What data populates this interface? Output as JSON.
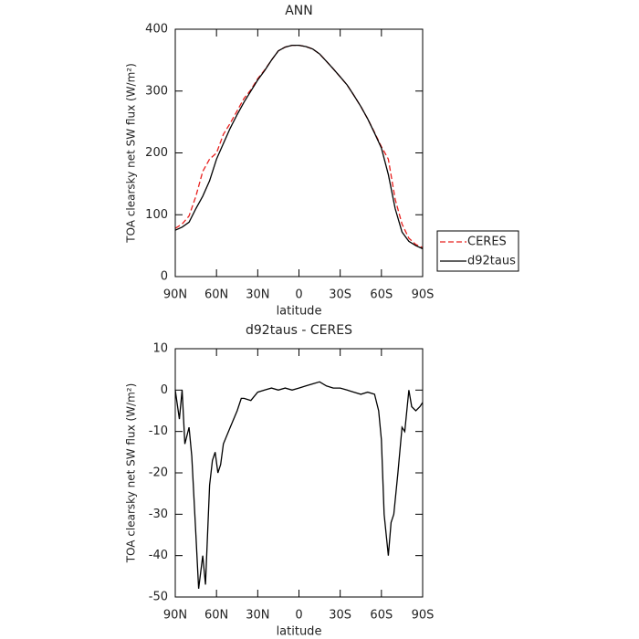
{
  "chart_data": [
    {
      "type": "line",
      "title": "ANN",
      "xlabel": "latitude",
      "ylabel": "TOA clearsky net SW flux (W/m²)",
      "x": [
        90,
        85,
        80,
        75,
        70,
        65,
        60,
        55,
        50,
        45,
        40,
        35,
        30,
        25,
        20,
        15,
        10,
        5,
        0,
        -5,
        -10,
        -15,
        -20,
        -25,
        -30,
        -35,
        -40,
        -45,
        -50,
        -55,
        -60,
        -65,
        -70,
        -75,
        -80,
        -85,
        -90
      ],
      "series": [
        {
          "name": "CERES",
          "color": "#e8201e",
          "style": "dashed",
          "values": [
            78,
            85,
            98,
            130,
            170,
            190,
            200,
            230,
            248,
            268,
            288,
            302,
            320,
            334,
            350,
            365,
            371,
            374,
            374,
            372,
            368,
            360,
            348,
            336,
            323,
            310,
            293,
            275,
            255,
            233,
            210,
            190,
            125,
            85,
            62,
            52,
            47
          ]
        },
        {
          "name": "d92taus",
          "color": "#000000",
          "style": "solid",
          "values": [
            75,
            80,
            88,
            110,
            130,
            155,
            190,
            215,
            240,
            262,
            282,
            300,
            318,
            333,
            350,
            365,
            371,
            374,
            374,
            372,
            368,
            360,
            348,
            336,
            323,
            310,
            293,
            275,
            255,
            232,
            208,
            165,
            110,
            72,
            57,
            50,
            45
          ]
        }
      ],
      "xlim": [
        90,
        -90
      ],
      "xticks": [
        {
          "value": 90,
          "label": "90N"
        },
        {
          "value": 60,
          "label": "60N"
        },
        {
          "value": 30,
          "label": "30N"
        },
        0,
        {
          "value": -30,
          "label": "30S"
        },
        {
          "value": -60,
          "label": "60S"
        },
        {
          "value": -90,
          "label": "90S"
        }
      ],
      "ylim": [
        0,
        400
      ],
      "yticks": [
        0,
        100,
        200,
        300,
        400
      ],
      "legend": "outside right"
    },
    {
      "type": "line",
      "title": "d92taus - CERES",
      "xlabel": "latitude",
      "ylabel": "TOA clearsky net SW flux (W/m²)",
      "x": [
        90,
        87,
        85,
        83,
        80,
        78,
        75,
        73,
        70,
        68,
        65,
        63,
        61,
        59,
        57,
        55,
        50,
        45,
        42,
        40,
        35,
        30,
        25,
        20,
        15,
        10,
        5,
        0,
        -5,
        -10,
        -15,
        -20,
        -25,
        -30,
        -35,
        -40,
        -45,
        -50,
        -55,
        -58,
        -60,
        -62,
        -65,
        -67,
        -69,
        -72,
        -75,
        -77,
        -80,
        -82,
        -85,
        -88,
        -90
      ],
      "values": [
        0,
        -7,
        0,
        -13,
        -9,
        -16,
        -35,
        -48,
        -40,
        -47,
        -23,
        -17,
        -15,
        -20,
        -18,
        -13,
        -9,
        -5,
        -2,
        -2,
        -2.5,
        -0.5,
        0,
        0.5,
        0,
        0.5,
        0,
        0.5,
        1,
        1.5,
        2,
        1,
        0.5,
        0.5,
        0,
        -0.5,
        -1,
        -0.5,
        -1,
        -5,
        -12,
        -30,
        -40,
        -32,
        -30,
        -20,
        -9,
        -10,
        0,
        -4,
        -5,
        -4,
        -3
      ],
      "color": "#000000",
      "xlim": [
        90,
        -90
      ],
      "xticks": [
        {
          "value": 90,
          "label": "90N"
        },
        {
          "value": 60,
          "label": "60N"
        },
        {
          "value": 30,
          "label": "30N"
        },
        0,
        {
          "value": -30,
          "label": "30S"
        },
        {
          "value": -60,
          "label": "60S"
        },
        {
          "value": -90,
          "label": "90S"
        }
      ],
      "ylim": [
        -50,
        10
      ],
      "yticks": [
        -50,
        -40,
        -30,
        -20,
        -10,
        0,
        10
      ]
    }
  ]
}
